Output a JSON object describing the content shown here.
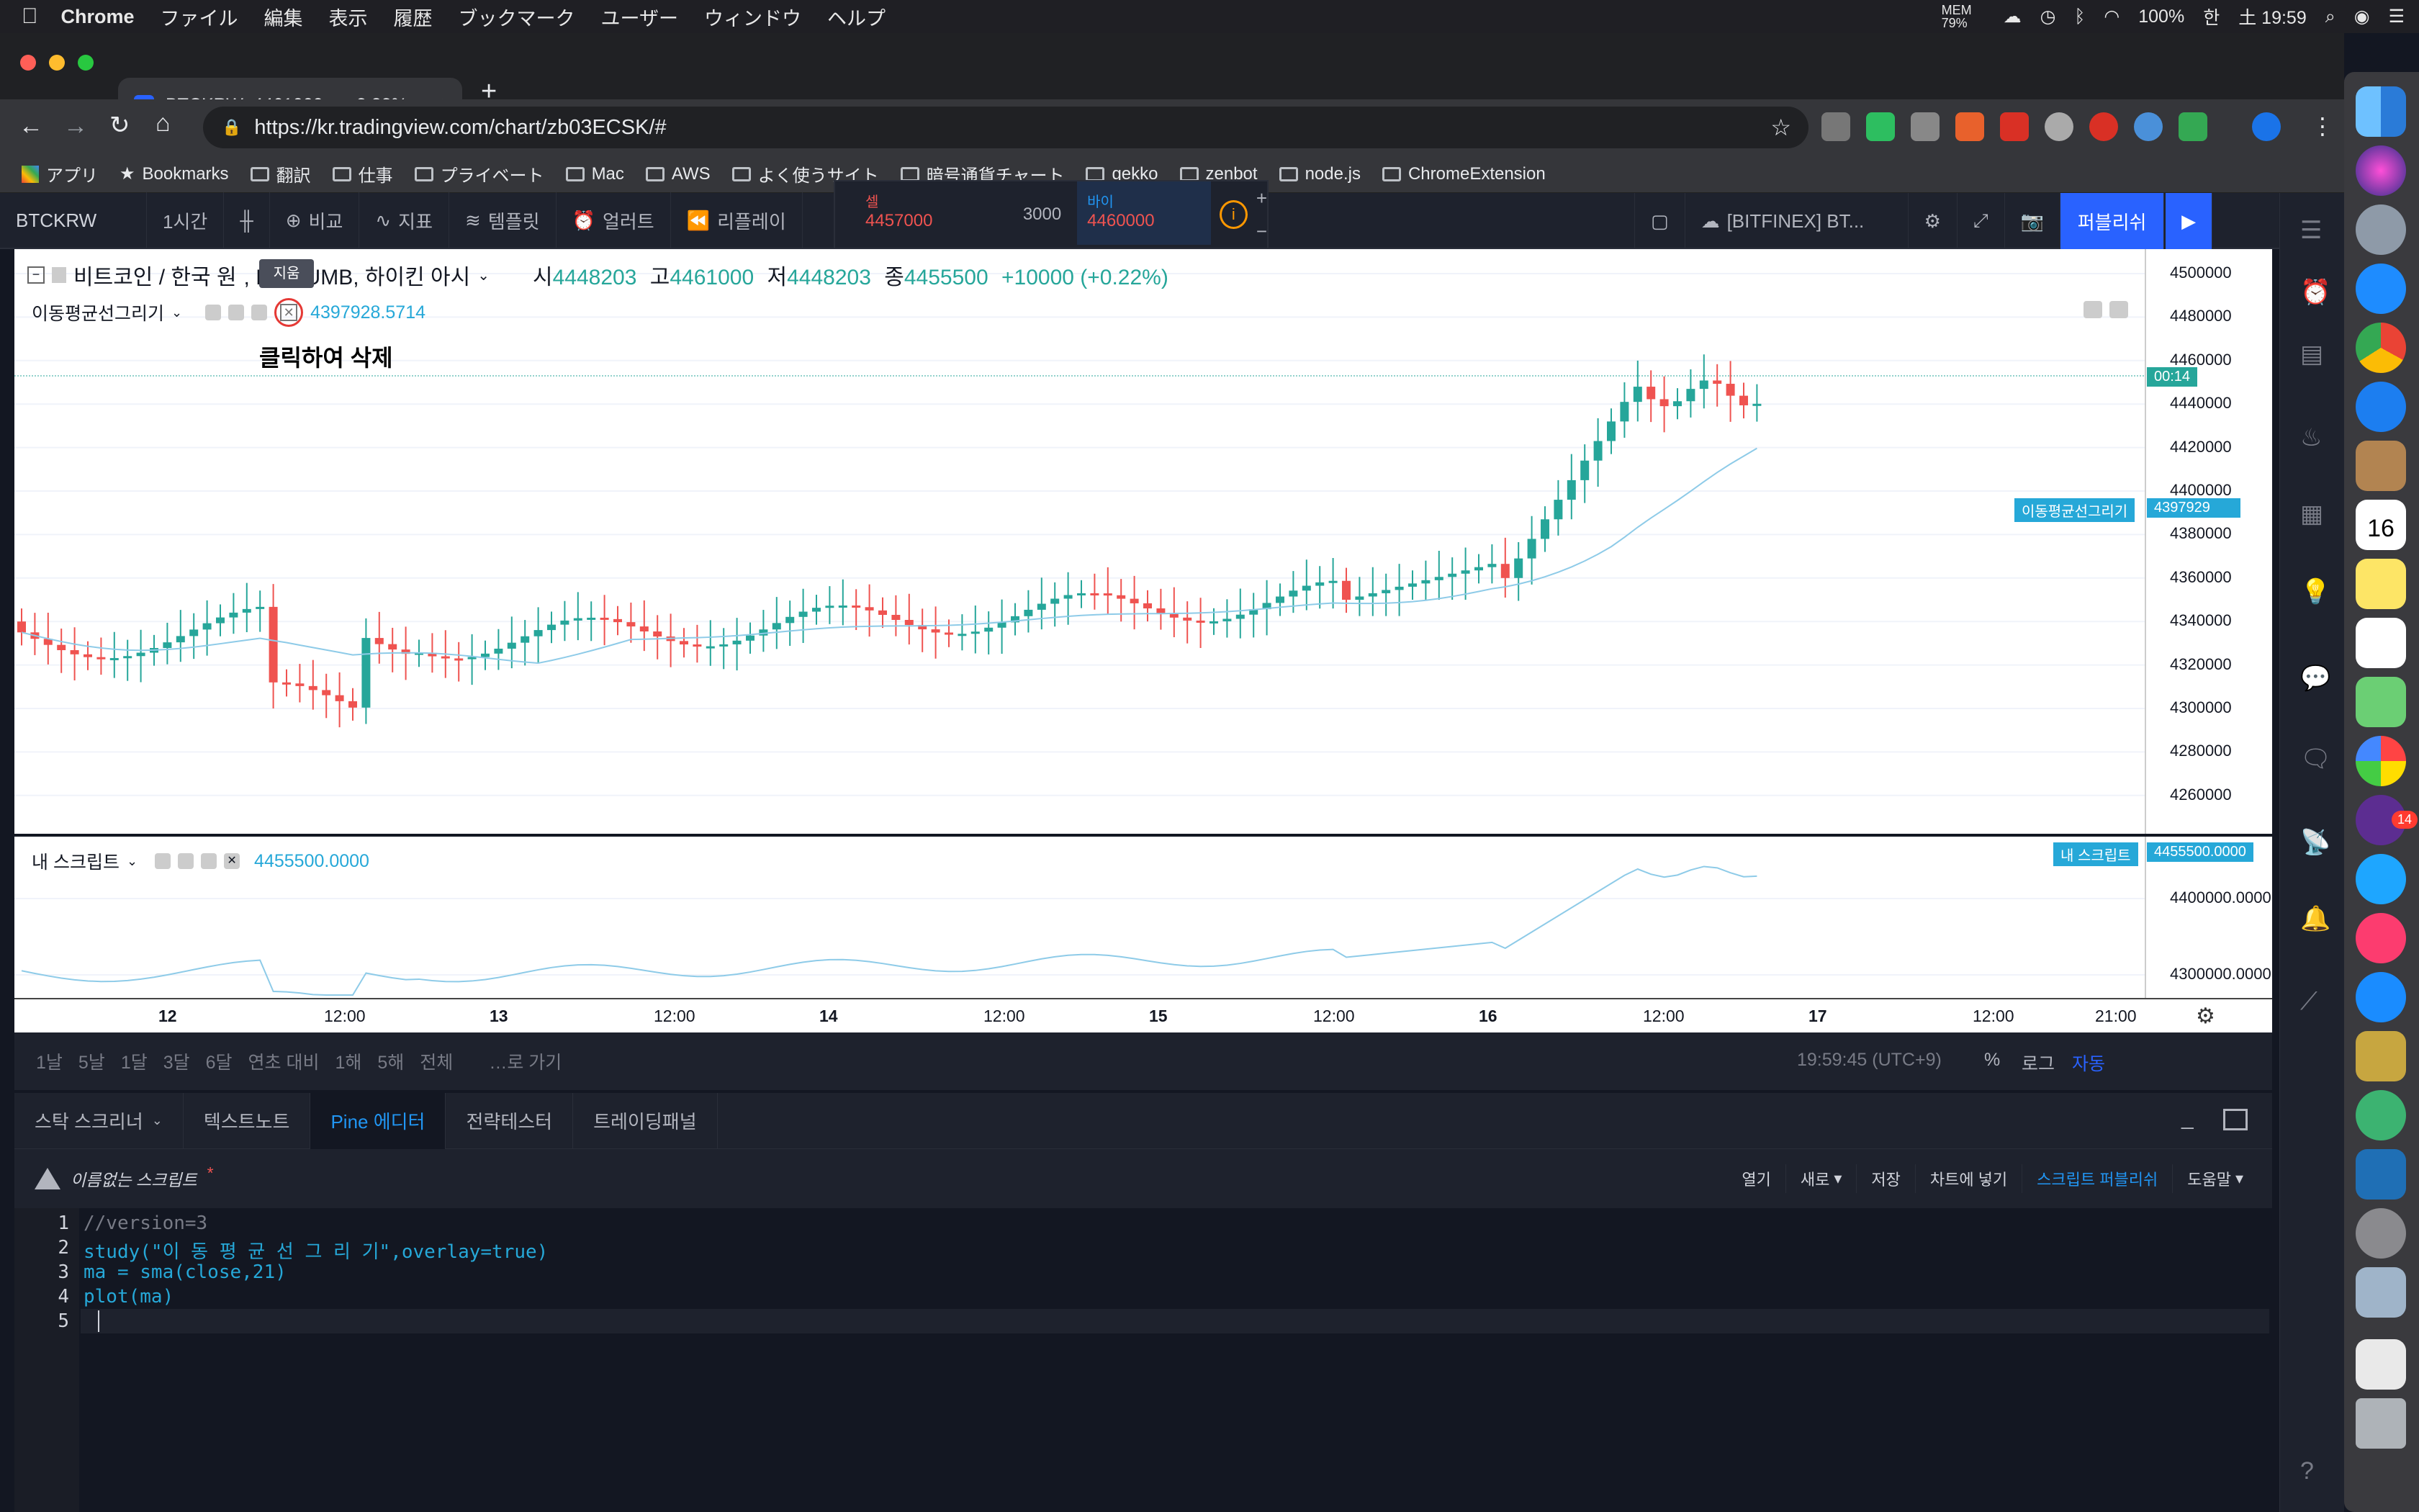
{
  "menubar": {
    "app": "Chrome",
    "items": [
      "ファイル",
      "編集",
      "表示",
      "履歴",
      "ブックマーク",
      "ユーザー",
      "ウィンドウ",
      "ヘルプ"
    ],
    "mem": "MEM 79%",
    "battery": "100%",
    "clock": "土 19:59",
    "input_method": "한"
  },
  "browser": {
    "tab_title": "BTCKRW: 4461000 ▲+2.32% -",
    "url": "https://kr.tradingview.com/chart/zb03ECSK/#",
    "bookmarks": [
      "アプリ",
      "Bookmarks",
      "翻訳",
      "仕事",
      "プライベート",
      "Mac",
      "AWS",
      "よく使うサイト",
      "暗号通貨チャート",
      "gekko",
      "zenbot",
      "node.js",
      "ChromeExtension"
    ]
  },
  "tvtoolbar": {
    "symbol": "BTCKRW",
    "interval": "1시간",
    "compare": "비교",
    "indicators": "지표",
    "templates": "템플릿",
    "alert": "얼러트",
    "replay": "리플레이",
    "sell_label": "셀",
    "sell_price": "4457000",
    "spread": "3000",
    "buy_label": "바이",
    "buy_price": "4460000",
    "source": "[BITFINEX] BT...",
    "publish": "퍼블리쉬"
  },
  "legend": {
    "title": "비트코인 / 한국 원",
    "exchange": ", BITHUMB, 하이킨 아시",
    "o_label": "시",
    "o": "4448203",
    "h_label": "고",
    "h": "4461000",
    "l_label": "저",
    "l": "4448203",
    "c_label": "종",
    "c": "4455500",
    "change": "+10000 (+0.22%)",
    "ma_name": "이동평균선그리기",
    "ma_value": "4397928.5714",
    "tooltip": "지움",
    "annotation": "클릭하여 삭제"
  },
  "price_axis": {
    "ticks": [
      "4500000",
      "4480000",
      "4460000",
      "4440000",
      "4420000",
      "4400000",
      "4380000",
      "4360000",
      "4340000",
      "4320000",
      "4300000",
      "4280000",
      "4260000"
    ],
    "current_label": "00:14",
    "ma_tag_name": "이동평균선그리기",
    "ma_tag_value": "4397929"
  },
  "indicator_pane": {
    "name": "내 스크립트",
    "value": "4455500.0000",
    "tag_name": "내 스크립트",
    "tag_value": "4455500.0000",
    "ticks": [
      "4400000.0000",
      "4300000.0000"
    ]
  },
  "time_axis": {
    "labels": [
      "12",
      "12:00",
      "13",
      "12:00",
      "14",
      "12:00",
      "15",
      "12:00",
      "16",
      "12:00",
      "17",
      "12:00",
      "21:00"
    ]
  },
  "range_bar": {
    "ranges": [
      "1날",
      "5날",
      "1달",
      "3달",
      "6달",
      "연초 대비",
      "1해",
      "5해",
      "전체"
    ],
    "goto": "…로 가기",
    "time": "19:59:45 (UTC+9)",
    "percent": "%",
    "log": "로그",
    "auto": "자동"
  },
  "bottom_tabs": [
    "스탁 스크리너",
    "텍스트노트",
    "Pine 에디터",
    "전략테스터",
    "트레이딩패널"
  ],
  "editor": {
    "script_name": "이름없는 스크립트",
    "actions": [
      "열기",
      "새로",
      "저장",
      "차트에 넣기",
      "스크립트 퍼블리쉬",
      "도움말"
    ],
    "lines": [
      "//version=3",
      "study(\"이 동 평 균 선 그 리 기\",overlay=true)",
      "ma = sma(close,21)",
      "plot(ma)",
      ""
    ]
  },
  "dock": {
    "calendar_day": "16",
    "badge": "14"
  },
  "colors": {
    "up": "#26a69a",
    "down": "#ef5350",
    "ma": "#8ecbe8",
    "accent": "#2962ff",
    "tag": "#26a8d8"
  }
}
